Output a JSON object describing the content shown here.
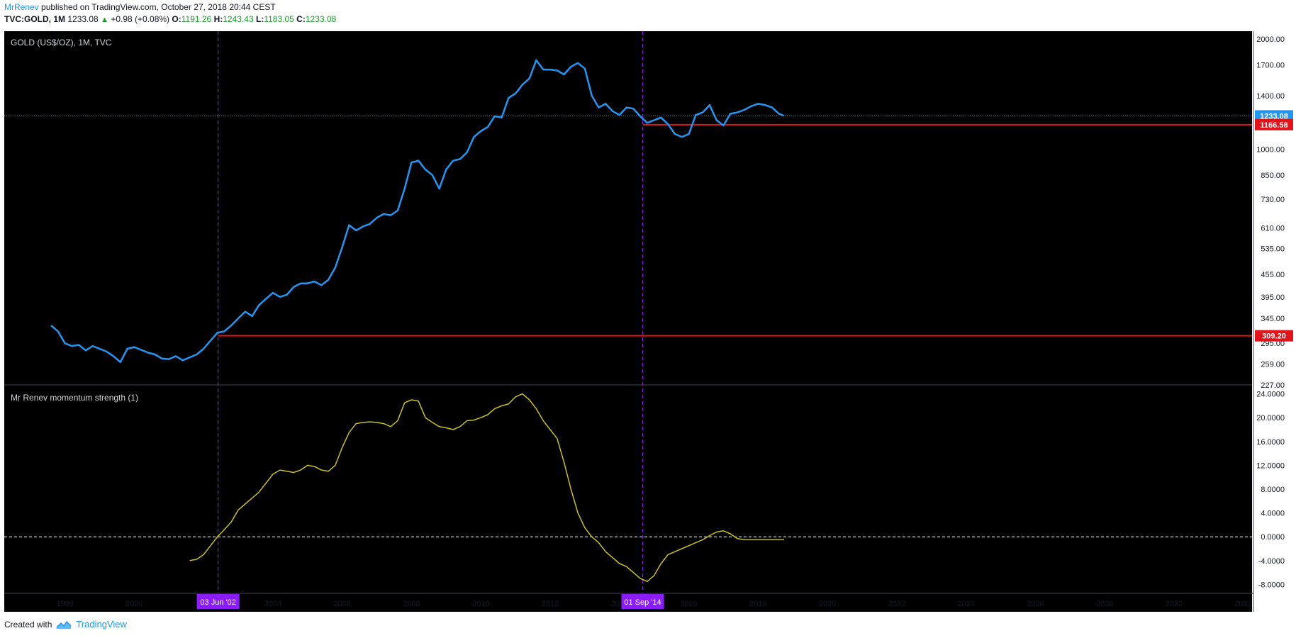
{
  "header": {
    "author": "MrRenev",
    "published_text": "published on TradingView.com, October 27, 2018 20:44 CEST"
  },
  "infobar": {
    "symbol": "TVC:GOLD, 1M",
    "last": "1233.08",
    "change": "+0.98 (+0.08%)",
    "o_label": "O:",
    "o_value": "1191.26",
    "h_label": "H:",
    "h_value": "1243.43",
    "l_label": "L:",
    "l_value": "1183.05",
    "c_label": "C:",
    "c_value": "1233.08"
  },
  "footer": {
    "created_with": "Created with",
    "brand": "TradingView"
  },
  "colors": {
    "background": "#000000",
    "price_line": "#2196f3",
    "momentum_line": "#c8c21e",
    "support_line": "#e0141a",
    "vline": "#7b1fd6",
    "vlabel_bg": "#8a1cff"
  },
  "chart_data": [
    {
      "type": "line",
      "title": "GOLD (US$/OZ), 1M, TVC",
      "y_scale": "log",
      "ylim": [
        227,
        2100
      ],
      "xlim": [
        1996.25,
        2032.25
      ],
      "y_ticks": [
        "2000.00",
        "1700.00",
        "1400.00",
        "1000.00",
        "850.00",
        "730.00",
        "610.00",
        "535.00",
        "455.00",
        "395.00",
        "345.00",
        "295.00",
        "259.00",
        "227.00"
      ],
      "x_ticks": [
        "1998",
        "2000",
        "2002",
        "2004",
        "2006",
        "2008",
        "2010",
        "2012",
        "2014",
        "2016",
        "2018",
        "2020",
        "2022",
        "2024",
        "2026",
        "2028",
        "2030",
        "2032"
      ],
      "series": [
        {
          "x": [
            1997.6,
            1997.8,
            1998.0,
            1998.2,
            1998.4,
            1998.6,
            1998.8,
            1999.0,
            1999.2,
            1999.4,
            1999.6,
            1999.8,
            2000.0,
            2000.2,
            2000.4,
            2000.6,
            2000.8,
            2001.0,
            2001.2,
            2001.4,
            2001.6,
            2001.8,
            2002.0,
            2002.2,
            2002.4,
            2002.6,
            2002.8,
            2003.0,
            2003.2,
            2003.4,
            2003.6,
            2003.8,
            2004.0,
            2004.2,
            2004.4,
            2004.6,
            2004.8,
            2005.0,
            2005.2,
            2005.4,
            2005.6,
            2005.8,
            2006.0,
            2006.2,
            2006.4,
            2006.6,
            2006.8,
            2007.0,
            2007.2,
            2007.4,
            2007.6,
            2007.8,
            2008.0,
            2008.2,
            2008.4,
            2008.6,
            2008.8,
            2009.0,
            2009.2,
            2009.4,
            2009.6,
            2009.8,
            2010.0,
            2010.2,
            2010.4,
            2010.6,
            2010.8,
            2011.0,
            2011.2,
            2011.4,
            2011.6,
            2011.8,
            2012.0,
            2012.2,
            2012.4,
            2012.6,
            2012.8,
            2013.0,
            2013.2,
            2013.4,
            2013.6,
            2013.8,
            2014.0,
            2014.2,
            2014.4,
            2014.6,
            2014.8,
            2015.0,
            2015.2,
            2015.4,
            2015.6,
            2015.8,
            2016.0,
            2016.2,
            2016.4,
            2016.6,
            2016.8,
            2017.0,
            2017.2,
            2017.4,
            2017.6,
            2017.8,
            2018.0,
            2018.2,
            2018.4,
            2018.6,
            2018.75
          ],
          "values": [
            330,
            318,
            295,
            290,
            292,
            282,
            290,
            285,
            280,
            272,
            262,
            285,
            288,
            283,
            278,
            275,
            268,
            267,
            272,
            265,
            270,
            275,
            285,
            300,
            315,
            318,
            330,
            345,
            360,
            350,
            375,
            390,
            405,
            395,
            400,
            420,
            430,
            430,
            435,
            425,
            440,
            475,
            540,
            620,
            600,
            615,
            625,
            650,
            665,
            660,
            680,
            780,
            920,
            930,
            880,
            850,
            780,
            880,
            930,
            940,
            980,
            1080,
            1120,
            1150,
            1230,
            1220,
            1380,
            1420,
            1500,
            1560,
            1750,
            1650,
            1650,
            1640,
            1600,
            1680,
            1720,
            1660,
            1400,
            1300,
            1330,
            1270,
            1240,
            1300,
            1290,
            1230,
            1180,
            1200,
            1220,
            1170,
            1100,
            1080,
            1100,
            1240,
            1260,
            1320,
            1200,
            1160,
            1250,
            1260,
            1280,
            1310,
            1330,
            1320,
            1300,
            1250,
            1233.08
          ]
        }
      ],
      "lines": {
        "last_price": 1233.08,
        "last_price_label": "1233.08",
        "support_high": 1166.58,
        "support_high_label": "1166.58",
        "support_high_start": 2014.67,
        "support_low": 309.2,
        "support_low_label": "309.20",
        "support_low_start": 2002.42
      }
    },
    {
      "type": "line",
      "title": "Mr Renev momentum strength (1)",
      "ylim": [
        -9.5,
        25.5
      ],
      "y_ticks": [
        "24.0000",
        "20.0000",
        "16.0000",
        "12.0000",
        "8.0000",
        "4.0000",
        "0.0000",
        "-4.0000",
        "-8.0000"
      ],
      "zero_line": 0,
      "series": [
        {
          "x": [
            2001.6,
            2001.8,
            2002.0,
            2002.2,
            2002.4,
            2002.6,
            2002.8,
            2003.0,
            2003.2,
            2003.4,
            2003.6,
            2003.8,
            2004.0,
            2004.2,
            2004.4,
            2004.6,
            2004.8,
            2005.0,
            2005.2,
            2005.4,
            2005.6,
            2005.8,
            2006.0,
            2006.2,
            2006.4,
            2006.6,
            2006.8,
            2007.0,
            2007.2,
            2007.4,
            2007.6,
            2007.8,
            2008.0,
            2008.2,
            2008.4,
            2008.6,
            2008.8,
            2009.0,
            2009.2,
            2009.4,
            2009.6,
            2009.8,
            2010.0,
            2010.2,
            2010.4,
            2010.6,
            2010.8,
            2011.0,
            2011.2,
            2011.4,
            2011.6,
            2011.8,
            2012.0,
            2012.2,
            2012.4,
            2012.6,
            2012.8,
            2013.0,
            2013.2,
            2013.4,
            2013.6,
            2013.8,
            2014.0,
            2014.2,
            2014.4,
            2014.6,
            2014.8,
            2015.0,
            2015.2,
            2015.4,
            2015.6,
            2015.8,
            2016.0,
            2016.2,
            2016.4,
            2016.6,
            2016.8,
            2017.0,
            2017.2,
            2017.4,
            2017.6,
            2017.8,
            2018.0,
            2018.2,
            2018.4,
            2018.6,
            2018.75
          ],
          "values": [
            -4.0,
            -3.8,
            -3.0,
            -1.5,
            0.0,
            1.2,
            2.5,
            4.5,
            5.5,
            6.5,
            7.5,
            9.0,
            10.5,
            11.2,
            11.0,
            10.8,
            11.2,
            12.0,
            11.8,
            11.2,
            11.0,
            12.0,
            15.0,
            17.5,
            19.0,
            19.2,
            19.3,
            19.2,
            19.0,
            18.5,
            19.5,
            22.5,
            23.0,
            22.8,
            20.0,
            19.2,
            18.5,
            18.3,
            18.0,
            18.5,
            19.5,
            19.6,
            20.0,
            20.5,
            21.5,
            22.0,
            22.3,
            23.5,
            24.0,
            23.0,
            21.5,
            19.5,
            18.0,
            16.5,
            12.5,
            8.0,
            4.0,
            1.5,
            0.0,
            -1.0,
            -2.5,
            -3.5,
            -4.5,
            -5.0,
            -6.0,
            -7.0,
            -7.5,
            -6.5,
            -4.5,
            -3.0,
            -2.5,
            -2.0,
            -1.5,
            -1.0,
            -0.5,
            0.2,
            0.8,
            1.0,
            0.5,
            -0.3,
            -0.5,
            -0.5,
            -0.5,
            -0.5,
            -0.5,
            -0.5,
            -0.5
          ]
        }
      ]
    }
  ],
  "markers": [
    {
      "x": 2002.42,
      "label": "03 Jun '02"
    },
    {
      "x": 2014.67,
      "label": "01 Sep '14"
    }
  ]
}
